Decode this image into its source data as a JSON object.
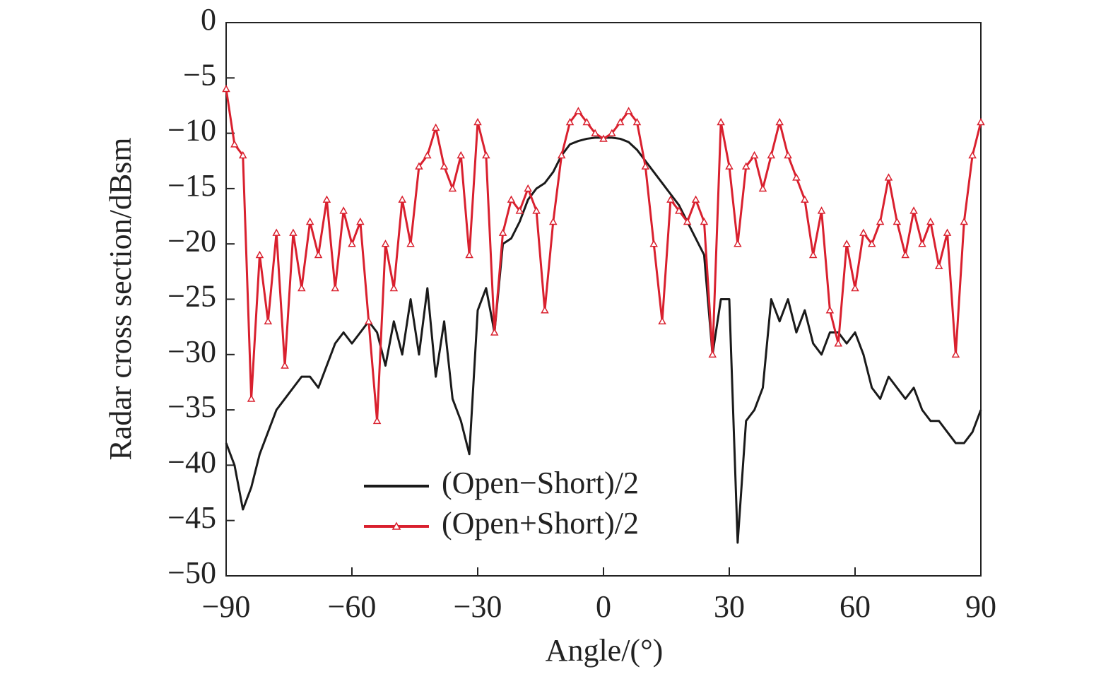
{
  "chart_data": {
    "type": "line",
    "xlabel": "Angle/(°)",
    "ylabel": "Radar cross section/dBsm",
    "x": [
      -90,
      -88,
      -86,
      -84,
      -82,
      -80,
      -78,
      -76,
      -74,
      -72,
      -70,
      -68,
      -66,
      -64,
      -62,
      -60,
      -58,
      -56,
      -54,
      -52,
      -50,
      -48,
      -46,
      -44,
      -42,
      -40,
      -38,
      -36,
      -34,
      -32,
      -30,
      -28,
      -26,
      -24,
      -22,
      -20,
      -18,
      -16,
      -14,
      -12,
      -10,
      -8,
      -6,
      -4,
      -2,
      0,
      2,
      4,
      6,
      8,
      10,
      12,
      14,
      16,
      18,
      20,
      22,
      24,
      26,
      28,
      30,
      32,
      34,
      36,
      38,
      40,
      42,
      44,
      46,
      48,
      50,
      52,
      54,
      56,
      58,
      60,
      62,
      64,
      66,
      68,
      70,
      72,
      74,
      76,
      78,
      80,
      82,
      84,
      86,
      88,
      90
    ],
    "series": [
      {
        "name": "(Open−Short)/2",
        "color": "#1a1a1a",
        "marker": "none",
        "values": [
          -38,
          -40,
          -44,
          -42,
          -39,
          -37,
          -35,
          -34,
          -33,
          -32,
          -32,
          -33,
          -31,
          -29,
          -28,
          -29,
          -28,
          -27,
          -28,
          -31,
          -27,
          -30,
          -25,
          -30,
          -24,
          -32,
          -27,
          -34,
          -36,
          -39,
          -26,
          -24,
          -28,
          -20,
          -19.5,
          -18,
          -16,
          -15,
          -14.5,
          -13.5,
          -12,
          -11,
          -10.7,
          -10.5,
          -10.4,
          -10.4,
          -10.4,
          -10.5,
          -10.8,
          -11.5,
          -12.5,
          -13.5,
          -14.5,
          -15.5,
          -16.5,
          -18,
          -19.5,
          -21,
          -30,
          -25,
          -25,
          -47,
          -36,
          -35,
          -33,
          -25,
          -27,
          -25,
          -28,
          -26,
          -29,
          -30,
          -28,
          -28,
          -29,
          -28,
          -30,
          -33,
          -34,
          -32,
          -33,
          -34,
          -33,
          -35,
          -36,
          -36,
          -37,
          -38,
          -38,
          -37,
          -35
        ]
      },
      {
        "name": "(Open+Short)/2",
        "color": "#d9202e",
        "marker": "triangle",
        "values": [
          -6,
          -11,
          -12,
          -34,
          -21,
          -27,
          -19,
          -31,
          -19,
          -24,
          -18,
          -21,
          -16,
          -24,
          -17,
          -20,
          -18,
          -27,
          -36,
          -20,
          -24,
          -16,
          -20,
          -13,
          -12,
          -9.5,
          -13,
          -15,
          -12,
          -21,
          -9,
          -12,
          -28,
          -19,
          -16,
          -17,
          -15,
          -17,
          -26,
          -18,
          -12,
          -9,
          -8,
          -9,
          -10,
          -10.5,
          -10,
          -9,
          -8,
          -9,
          -13,
          -20,
          -27,
          -16,
          -17,
          -18,
          -16,
          -18,
          -30,
          -9,
          -13,
          -20,
          -13,
          -12,
          -15,
          -12,
          -9,
          -12,
          -14,
          -16,
          -21,
          -17,
          -26,
          -29,
          -20,
          -24,
          -19,
          -20,
          -18,
          -14,
          -18,
          -21,
          -17,
          -20,
          -18,
          -22,
          -19,
          -30,
          -18,
          -12,
          -9
        ]
      }
    ],
    "xlim": [
      -90,
      90
    ],
    "xticks": [
      {
        "value": -90,
        "label": "−90"
      },
      {
        "value": -60,
        "label": "−60"
      },
      {
        "value": -30,
        "label": "−30"
      },
      0,
      30,
      60,
      90
    ],
    "ylim": [
      -50,
      0
    ],
    "yticks": [
      {
        "value": -50,
        "label": "−50"
      },
      {
        "value": -45,
        "label": "−45"
      },
      {
        "value": -40,
        "label": "−40"
      },
      {
        "value": -35,
        "label": "−35"
      },
      {
        "value": -30,
        "label": "−30"
      },
      {
        "value": -25,
        "label": "−25"
      },
      {
        "value": -20,
        "label": "−20"
      },
      {
        "value": -15,
        "label": "−15"
      },
      {
        "value": -10,
        "label": "−10"
      },
      {
        "value": -5,
        "label": "−5"
      },
      0
    ],
    "grid": false,
    "legend": "lower center"
  }
}
